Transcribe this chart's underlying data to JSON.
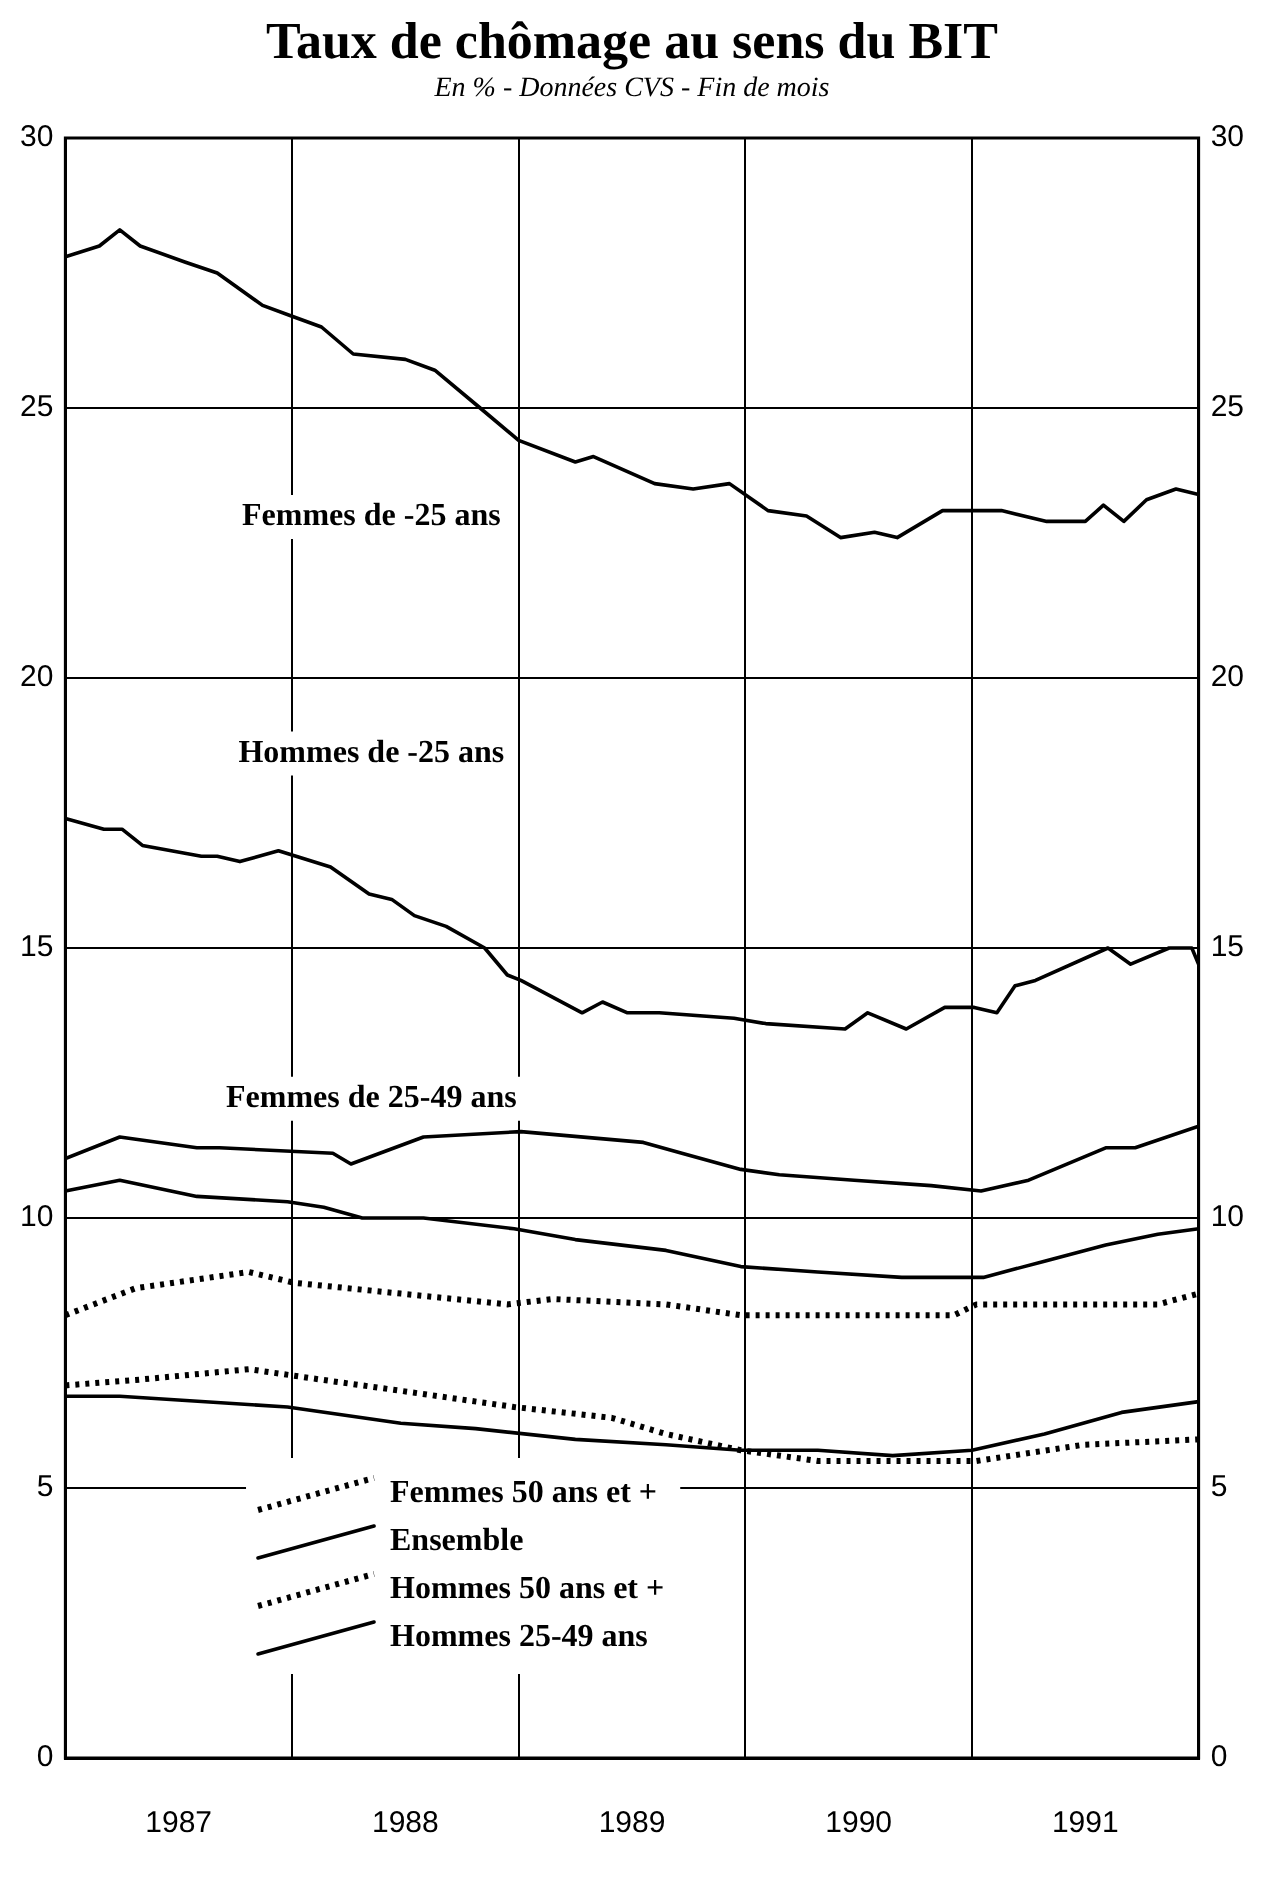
{
  "chart_data": {
    "type": "line",
    "title": "Taux de chômage au sens du BIT",
    "subtitle": "En % - Données CVS - Fin de mois",
    "xlim": [
      1987,
      1992
    ],
    "xticks": [
      {
        "value": 1987.5,
        "label": "1987"
      },
      {
        "value": 1988,
        "label": null
      },
      {
        "value": 1988.5,
        "label": "1988"
      },
      {
        "value": 1989,
        "label": null
      },
      {
        "value": 1989.5,
        "label": "1989"
      },
      {
        "value": 1990,
        "label": null
      },
      {
        "value": 1990.5,
        "label": "1990"
      },
      {
        "value": 1991,
        "label": null
      },
      {
        "value": 1991.5,
        "label": "1991"
      }
    ],
    "ylim": [
      0,
      30
    ],
    "yticks": [
      0,
      5,
      10,
      15,
      20,
      25,
      30
    ],
    "y2lim": [
      0,
      30
    ],
    "y2ticks": [
      0,
      5,
      10,
      15,
      20,
      25,
      30
    ],
    "grid": true,
    "legend": "bottom left",
    "marker": "none",
    "annotations": [
      "Femmes de -25 ans",
      "Hommes de -25 ans",
      "Femmes de 25-49 ans"
    ],
    "series": [
      {
        "color": "#000000",
        "line_style": "solid",
        "x": [
          1987,
          1987.15,
          1987.24,
          1987.33,
          1987.53,
          1987.67,
          1987.87,
          1988,
          1988.13,
          1988.27,
          1988.5,
          1988.63,
          1988.83,
          1989,
          1989.25,
          1989.33,
          1989.6,
          1989.77,
          1989.93,
          1990.1,
          1990.27,
          1990.42,
          1990.57,
          1990.67,
          1990.87,
          1991.13,
          1991.33,
          1991.5,
          1991.58,
          1991.67,
          1991.77,
          1991.9,
          1992
        ],
        "values": [
          27.8,
          28,
          28.3,
          28,
          27.7,
          27.5,
          26.9,
          26.7,
          26.5,
          26,
          25.9,
          25.7,
          25,
          24.4,
          24,
          24.1,
          23.6,
          23.5,
          23.6,
          23.1,
          23,
          22.6,
          22.7,
          22.6,
          23.1,
          23.1,
          22.9,
          22.9,
          23.2,
          22.9,
          23.3,
          23.5,
          23.4
        ]
      },
      {
        "color": "#000000",
        "line_style": "solid",
        "x": [
          1987,
          1987.17,
          1987.25,
          1987.34,
          1987.6,
          1987.67,
          1987.77,
          1987.94,
          1988.17,
          1988.34,
          1988.44,
          1988.54,
          1988.68,
          1988.85,
          1988.95,
          1989.01,
          1989.28,
          1989.37,
          1989.48,
          1989.62,
          1989.95,
          1990.09,
          1990.44,
          1990.54,
          1990.71,
          1990.88,
          1991.01,
          1991.11,
          1991.19,
          1991.28,
          1991.6,
          1991.7,
          1991.87,
          1991.97,
          1992
        ],
        "values": [
          17.4,
          17.2,
          17.2,
          16.9,
          16.7,
          16.7,
          16.6,
          16.8,
          16.5,
          16,
          15.9,
          15.6,
          15.4,
          15,
          14.5,
          14.4,
          13.8,
          14,
          13.8,
          13.8,
          13.7,
          13.6,
          13.5,
          13.8,
          13.5,
          13.9,
          13.9,
          13.8,
          14.3,
          14.4,
          15,
          14.7,
          15,
          15,
          14.7
        ]
      },
      {
        "color": "#000000",
        "line_style": "solid",
        "x": [
          1987,
          1987.24,
          1987.58,
          1987.68,
          1988.18,
          1988.26,
          1988.58,
          1989.01,
          1989.55,
          1989.72,
          1989.98,
          1990.15,
          1990.48,
          1990.82,
          1991.04,
          1991.25,
          1991.59,
          1991.72,
          1992
        ],
        "values": [
          11.1,
          11.5,
          11.3,
          11.3,
          11.2,
          11,
          11.5,
          11.6,
          11.4,
          11.2,
          10.9,
          10.8,
          10.7,
          10.6,
          10.5,
          10.7,
          11.3,
          11.3,
          11.7
        ]
      },
      {
        "name": "Femmes 50 ans et +",
        "color": "#000000",
        "line_style": "dotted",
        "x": [
          1987,
          1987.31,
          1987.81,
          1988.01,
          1988.48,
          1988.95,
          1989.15,
          1989.65,
          1989.98,
          1990.48,
          1990.92,
          1991.02,
          1991.49,
          1991.82,
          1992
        ],
        "values": [
          8.2,
          8.7,
          9,
          8.8,
          8.6,
          8.4,
          8.5,
          8.4,
          8.2,
          8.2,
          8.2,
          8.4,
          8.4,
          8.4,
          8.6
        ]
      },
      {
        "name": "Ensemble",
        "color": "#000000",
        "line_style": "solid",
        "x": [
          1987,
          1987.24,
          1987.58,
          1987.98,
          1988.14,
          1988.31,
          1988.58,
          1988.98,
          1989.25,
          1989.65,
          1989.98,
          1990.32,
          1990.69,
          1991.05,
          1991.32,
          1991.59,
          1991.82,
          1992
        ],
        "values": [
          10.5,
          10.7,
          10.4,
          10.3,
          10.2,
          10,
          10,
          9.8,
          9.6,
          9.4,
          9.1,
          9,
          8.9,
          8.9,
          9.2,
          9.5,
          9.7,
          9.8
        ]
      },
      {
        "name": "Hommes 50 ans et +",
        "color": "#000000",
        "line_style": "dotted",
        "x": [
          1987,
          1987.31,
          1987.81,
          1988.14,
          1988.48,
          1988.98,
          1989.41,
          1989.65,
          1989.98,
          1990.32,
          1990.82,
          1991.02,
          1991.49,
          1992
        ],
        "values": [
          6.9,
          7,
          7.2,
          7,
          6.8,
          6.5,
          6.3,
          6,
          5.7,
          5.5,
          5.5,
          5.5,
          5.8,
          5.9
        ]
      },
      {
        "name": "Hommes 25-49 ans",
        "color": "#000000",
        "line_style": "solid",
        "x": [
          1987,
          1987.24,
          1987.98,
          1988.48,
          1988.81,
          1989.25,
          1989.65,
          1989.98,
          1990.32,
          1990.65,
          1991,
          1991.32,
          1991.66,
          1992
        ],
        "values": [
          6.7,
          6.7,
          6.5,
          6.2,
          6.1,
          5.9,
          5.8,
          5.7,
          5.7,
          5.6,
          5.7,
          6,
          6.4,
          6.6
        ]
      }
    ]
  }
}
